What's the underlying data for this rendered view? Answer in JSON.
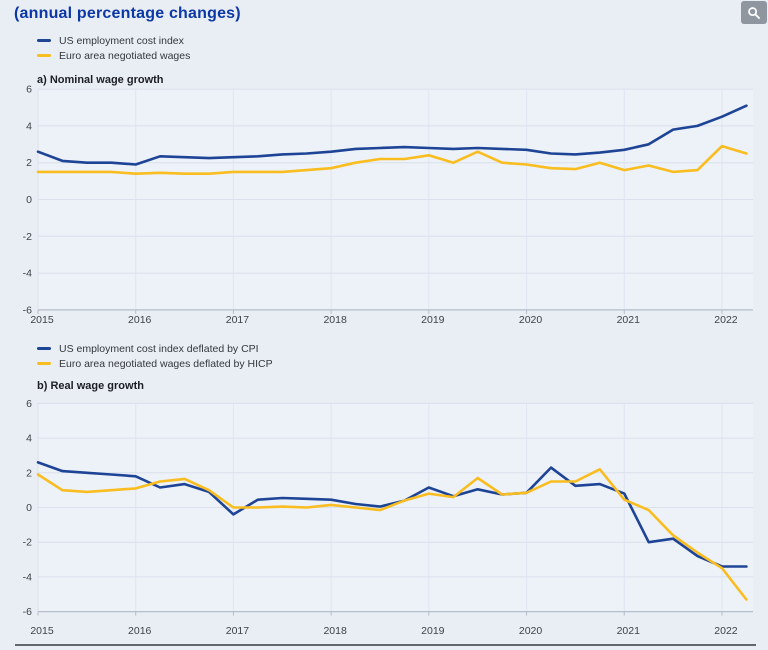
{
  "page": {
    "title": "(annual percentage changes)"
  },
  "toolbar": {
    "zoom_icon": "magnifier"
  },
  "colors": {
    "us_line": "#1e4496",
    "euro_line": "#f9bd20",
    "title_blue": "#0b38a6",
    "plot_bg": "#edf1f8",
    "grid_h": "#dae1ec",
    "grid_v": "#dfe6f1",
    "axis_line": "#b6bec9",
    "tick_text": "#3d4249",
    "button_bg": "#8f969f"
  },
  "chart_data": [
    {
      "id": "nominal-wage-growth",
      "type": "line",
      "section_label": "a) Nominal wage growth",
      "x_unit": "quarterly",
      "x_range": [
        "2015-Q1",
        "2022-Q2"
      ],
      "categories": [
        "2015",
        "2016",
        "2017",
        "2018",
        "2019",
        "2020",
        "2021",
        "2022"
      ],
      "ylim": [
        -6,
        6
      ],
      "yticks": [
        6,
        4,
        2,
        0,
        -2,
        -4,
        -6
      ],
      "grid": true,
      "legend_position": "top-left",
      "series": [
        {
          "name": "US employment cost index",
          "color_key": "us_line",
          "values": [
            2.6,
            2.1,
            2.0,
            2.0,
            1.9,
            2.35,
            2.3,
            2.25,
            2.3,
            2.35,
            2.45,
            2.5,
            2.6,
            2.75,
            2.8,
            2.85,
            2.8,
            2.75,
            2.8,
            2.75,
            2.7,
            2.5,
            2.45,
            2.55,
            2.7,
            3.0,
            3.8,
            4.0,
            4.5,
            5.1
          ]
        },
        {
          "name": "Euro area negotiated wages",
          "color_key": "euro_line",
          "values": [
            1.5,
            1.5,
            1.5,
            1.5,
            1.4,
            1.45,
            1.4,
            1.4,
            1.5,
            1.5,
            1.5,
            1.6,
            1.7,
            2.0,
            2.2,
            2.2,
            2.4,
            2.0,
            2.6,
            2.0,
            1.9,
            1.7,
            1.65,
            2.0,
            1.6,
            1.85,
            1.5,
            1.6,
            2.9,
            2.5
          ]
        }
      ]
    },
    {
      "id": "real-wage-growth",
      "type": "line",
      "section_label": "b) Real wage growth",
      "x_unit": "quarterly",
      "x_range": [
        "2015-Q1",
        "2022-Q2"
      ],
      "categories": [
        "2015",
        "2016",
        "2017",
        "2018",
        "2019",
        "2020",
        "2021",
        "2022"
      ],
      "ylim": [
        -6,
        6
      ],
      "yticks": [
        6,
        4,
        2,
        0,
        -2,
        -4,
        -6
      ],
      "grid": true,
      "legend_position": "top-left",
      "series": [
        {
          "name": "US employment cost index deflated by CPI",
          "color_key": "us_line",
          "values": [
            2.6,
            2.1,
            2.0,
            1.9,
            1.8,
            1.15,
            1.35,
            0.9,
            -0.4,
            0.45,
            0.55,
            0.5,
            0.45,
            0.2,
            0.05,
            0.4,
            1.15,
            0.65,
            1.05,
            0.75,
            0.85,
            2.3,
            1.25,
            1.35,
            0.8,
            -2.0,
            -1.8,
            -2.8,
            -3.4,
            -3.4
          ]
        },
        {
          "name": "Euro area negotiated wages deflated by HICP",
          "color_key": "euro_line",
          "values": [
            1.9,
            1.0,
            0.9,
            1.0,
            1.1,
            1.5,
            1.65,
            1.0,
            0.0,
            0.0,
            0.05,
            0.0,
            0.15,
            0.0,
            -0.15,
            0.4,
            0.8,
            0.6,
            1.7,
            0.75,
            0.85,
            1.5,
            1.5,
            2.2,
            0.45,
            -0.15,
            -1.6,
            -2.6,
            -3.5,
            -5.3
          ]
        }
      ]
    }
  ]
}
